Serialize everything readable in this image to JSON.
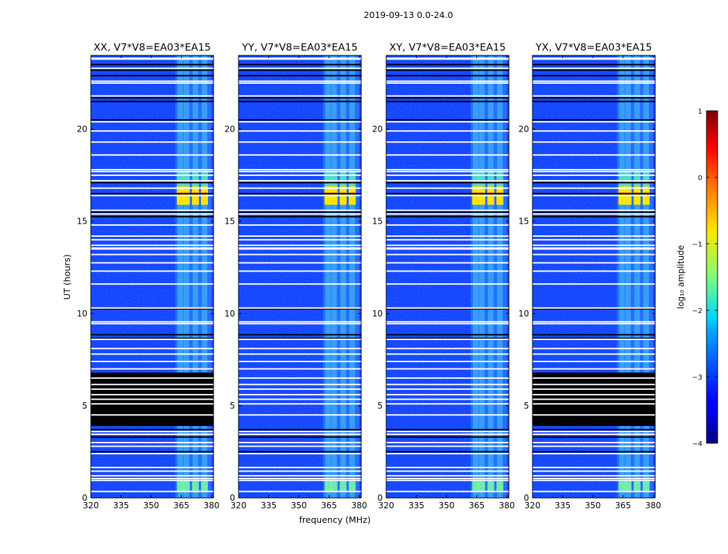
{
  "chart_data": {
    "type": "heatmap",
    "suptitle": "2019-09-13 0.0-24.0",
    "xlabel": "frequency (MHz)",
    "ylabel": "UT (hours)",
    "xlim": [
      320,
      381
    ],
    "ylim": [
      0,
      24
    ],
    "xticks": [
      320,
      335,
      350,
      365,
      380
    ],
    "yticks": [
      0,
      5,
      10,
      15,
      20
    ],
    "panels": [
      {
        "title": "XX, V7*V8=EA03*EA15",
        "blank_block_hours": [
          3.9,
          6.8
        ]
      },
      {
        "title": "YY, V7*V8=EA03*EA15",
        "blank_block_hours": null
      },
      {
        "title": "XY, V7*V8=EA03*EA15",
        "blank_block_hours": null
      },
      {
        "title": "YX, V7*V8=EA03*EA15",
        "blank_block_hours": [
          3.9,
          6.8
        ]
      }
    ],
    "colorbar": {
      "label": "log₁₀ amplitude",
      "range": [
        -4,
        1
      ],
      "ticks": [
        1,
        0,
        -1,
        -2,
        -3,
        -4
      ],
      "tick_labels": [
        "1",
        "0",
        "−1",
        "−2",
        "−3",
        "−4"
      ],
      "colormap": "jet"
    },
    "features": {
      "rfi_band_mhz": [
        362,
        380
      ],
      "rfi_channels_mhz": [
        364.5,
        367.5,
        372.0,
        376.5
      ],
      "bright_burst_hours": [
        15.9,
        16.9
      ],
      "background_log_amplitude": -3.3,
      "burst_log_amplitude": -0.8,
      "flagged_white_rows_hours": [
        0.35,
        0.95,
        1.05,
        1.2,
        1.45,
        1.65,
        2.4,
        2.8,
        3.0,
        3.45,
        3.6,
        4.5,
        5.1,
        5.35,
        5.6,
        5.9,
        6.15,
        6.5,
        7.0,
        7.4,
        7.8,
        8.1,
        8.6,
        9.45,
        9.55,
        10.3,
        11.6,
        12.3,
        12.75,
        13.2,
        13.5,
        13.55,
        13.7,
        14.0,
        14.2,
        14.8,
        15.4,
        15.6,
        16.4,
        16.8,
        17.2,
        17.5,
        17.7,
        17.8,
        18.6,
        19.3,
        19.9,
        20.4,
        21.8,
        22.5,
        22.6,
        23.3,
        23.8,
        23.85
      ],
      "flagged_dark_rows_hours": [
        1.2,
        2.5,
        3.3,
        3.7,
        8.65,
        8.85,
        10.25,
        13.5,
        15.25,
        15.5,
        16.5,
        17.1,
        20.5,
        21.5,
        21.7,
        22.9,
        23.2,
        23.5
      ]
    }
  }
}
